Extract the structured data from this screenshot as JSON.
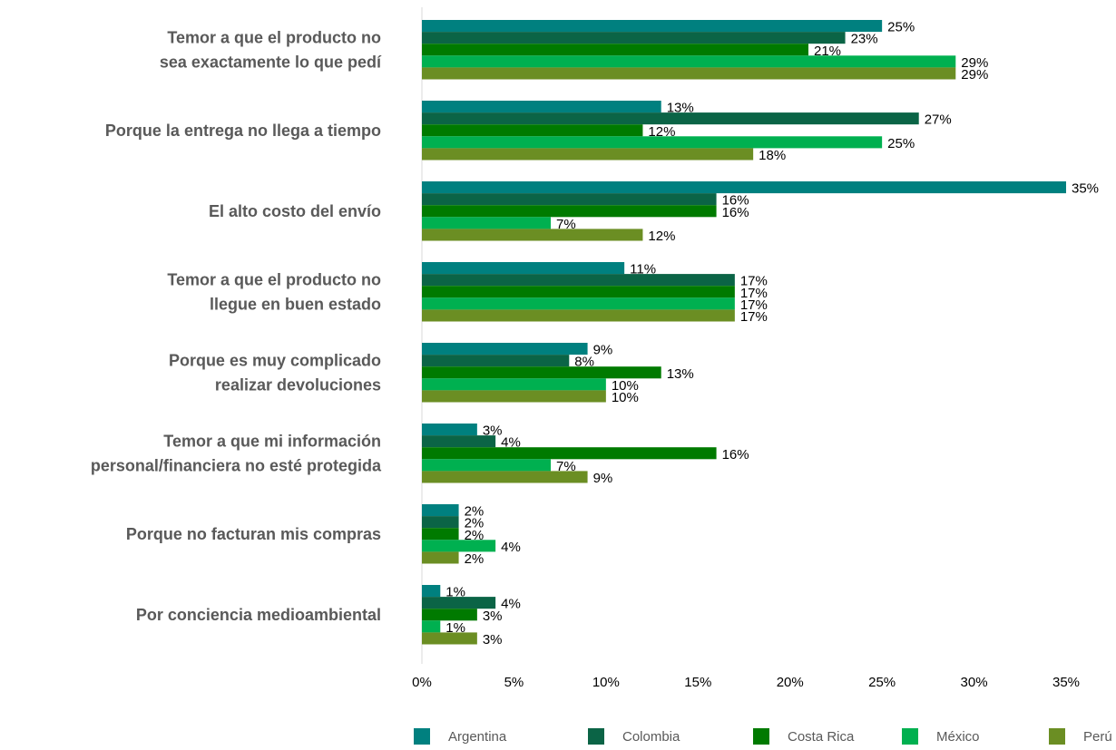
{
  "chart_data": {
    "type": "bar",
    "orientation": "horizontal",
    "title": "",
    "xlabel": "",
    "ylabel": "",
    "xlim": [
      0,
      35
    ],
    "x_ticks": [
      "0%",
      "5%",
      "10%",
      "15%",
      "20%",
      "25%",
      "30%",
      "35%"
    ],
    "grid": false,
    "legend_position": "bottom",
    "categories": [
      [
        "Temor a que el producto no",
        "sea exactamente lo que pedí"
      ],
      [
        "Porque la entrega no llega a tiempo"
      ],
      [
        "El alto costo del envío"
      ],
      [
        "Temor a que el producto no",
        "llegue en buen estado"
      ],
      [
        "Porque es muy complicado",
        "realizar devoluciones"
      ],
      [
        "Temor a que mi información",
        "personal/financiera no esté protegida"
      ],
      [
        "Porque no facturan mis compras"
      ],
      [
        "Por conciencia medioambiental"
      ]
    ],
    "series": [
      {
        "name": "Argentina",
        "color": "#00807f",
        "values": [
          25,
          13,
          35,
          11,
          9,
          3,
          2,
          1
        ]
      },
      {
        "name": "Colombia",
        "color": "#0b6446",
        "values": [
          23,
          27,
          16,
          17,
          8,
          4,
          2,
          4
        ]
      },
      {
        "name": "Costa Rica",
        "color": "#007a00",
        "values": [
          21,
          12,
          16,
          17,
          13,
          16,
          2,
          3
        ]
      },
      {
        "name": "México",
        "color": "#00b050",
        "values": [
          29,
          25,
          7,
          17,
          10,
          7,
          4,
          1
        ]
      },
      {
        "name": "Perú",
        "color": "#6b8e23",
        "values": [
          29,
          18,
          12,
          17,
          10,
          9,
          2,
          3
        ]
      }
    ],
    "value_suffix": "%"
  }
}
